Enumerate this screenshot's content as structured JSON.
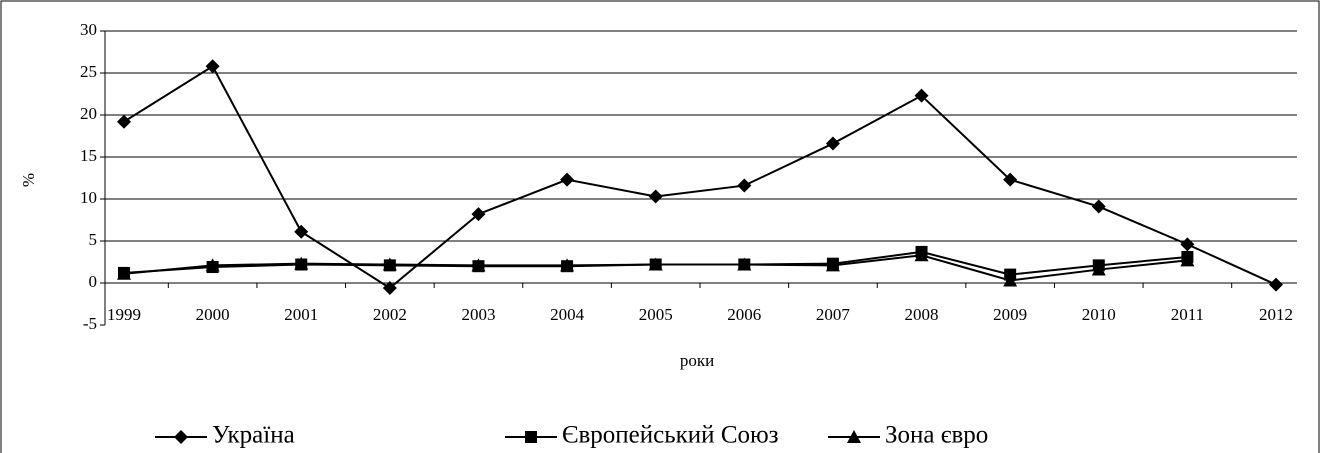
{
  "chart_data": {
    "type": "line",
    "x_label": "роки",
    "y_label": "%",
    "categories": [
      "1999",
      "2000",
      "2001",
      "2002",
      "2003",
      "2004",
      "2005",
      "2006",
      "2007",
      "2008",
      "2009",
      "2010",
      "2011",
      "2012"
    ],
    "series": [
      {
        "name": "Україна",
        "color": "#000000",
        "marker": "diamond",
        "values": [
          19.2,
          25.8,
          6.1,
          -0.6,
          8.2,
          12.3,
          10.3,
          11.6,
          16.6,
          22.3,
          12.3,
          9.1,
          4.6,
          -0.2
        ]
      },
      {
        "name": "Європейський Союз",
        "color": "#000000",
        "marker": "square",
        "values": [
          1.2,
          1.9,
          2.2,
          2.1,
          2.0,
          2.0,
          2.2,
          2.2,
          2.3,
          3.7,
          1.0,
          2.1,
          3.1,
          null
        ]
      },
      {
        "name": "Зона євро",
        "color": "#000000",
        "marker": "triangle",
        "values": [
          1.1,
          2.1,
          2.3,
          2.2,
          2.1,
          2.1,
          2.2,
          2.2,
          2.1,
          3.3,
          0.3,
          1.6,
          2.7,
          null
        ]
      }
    ],
    "ylim": [
      -5,
      30
    ],
    "yticks": [
      -5,
      0,
      5,
      10,
      15,
      20,
      25,
      30
    ],
    "grid": true,
    "legend": "bottom"
  }
}
